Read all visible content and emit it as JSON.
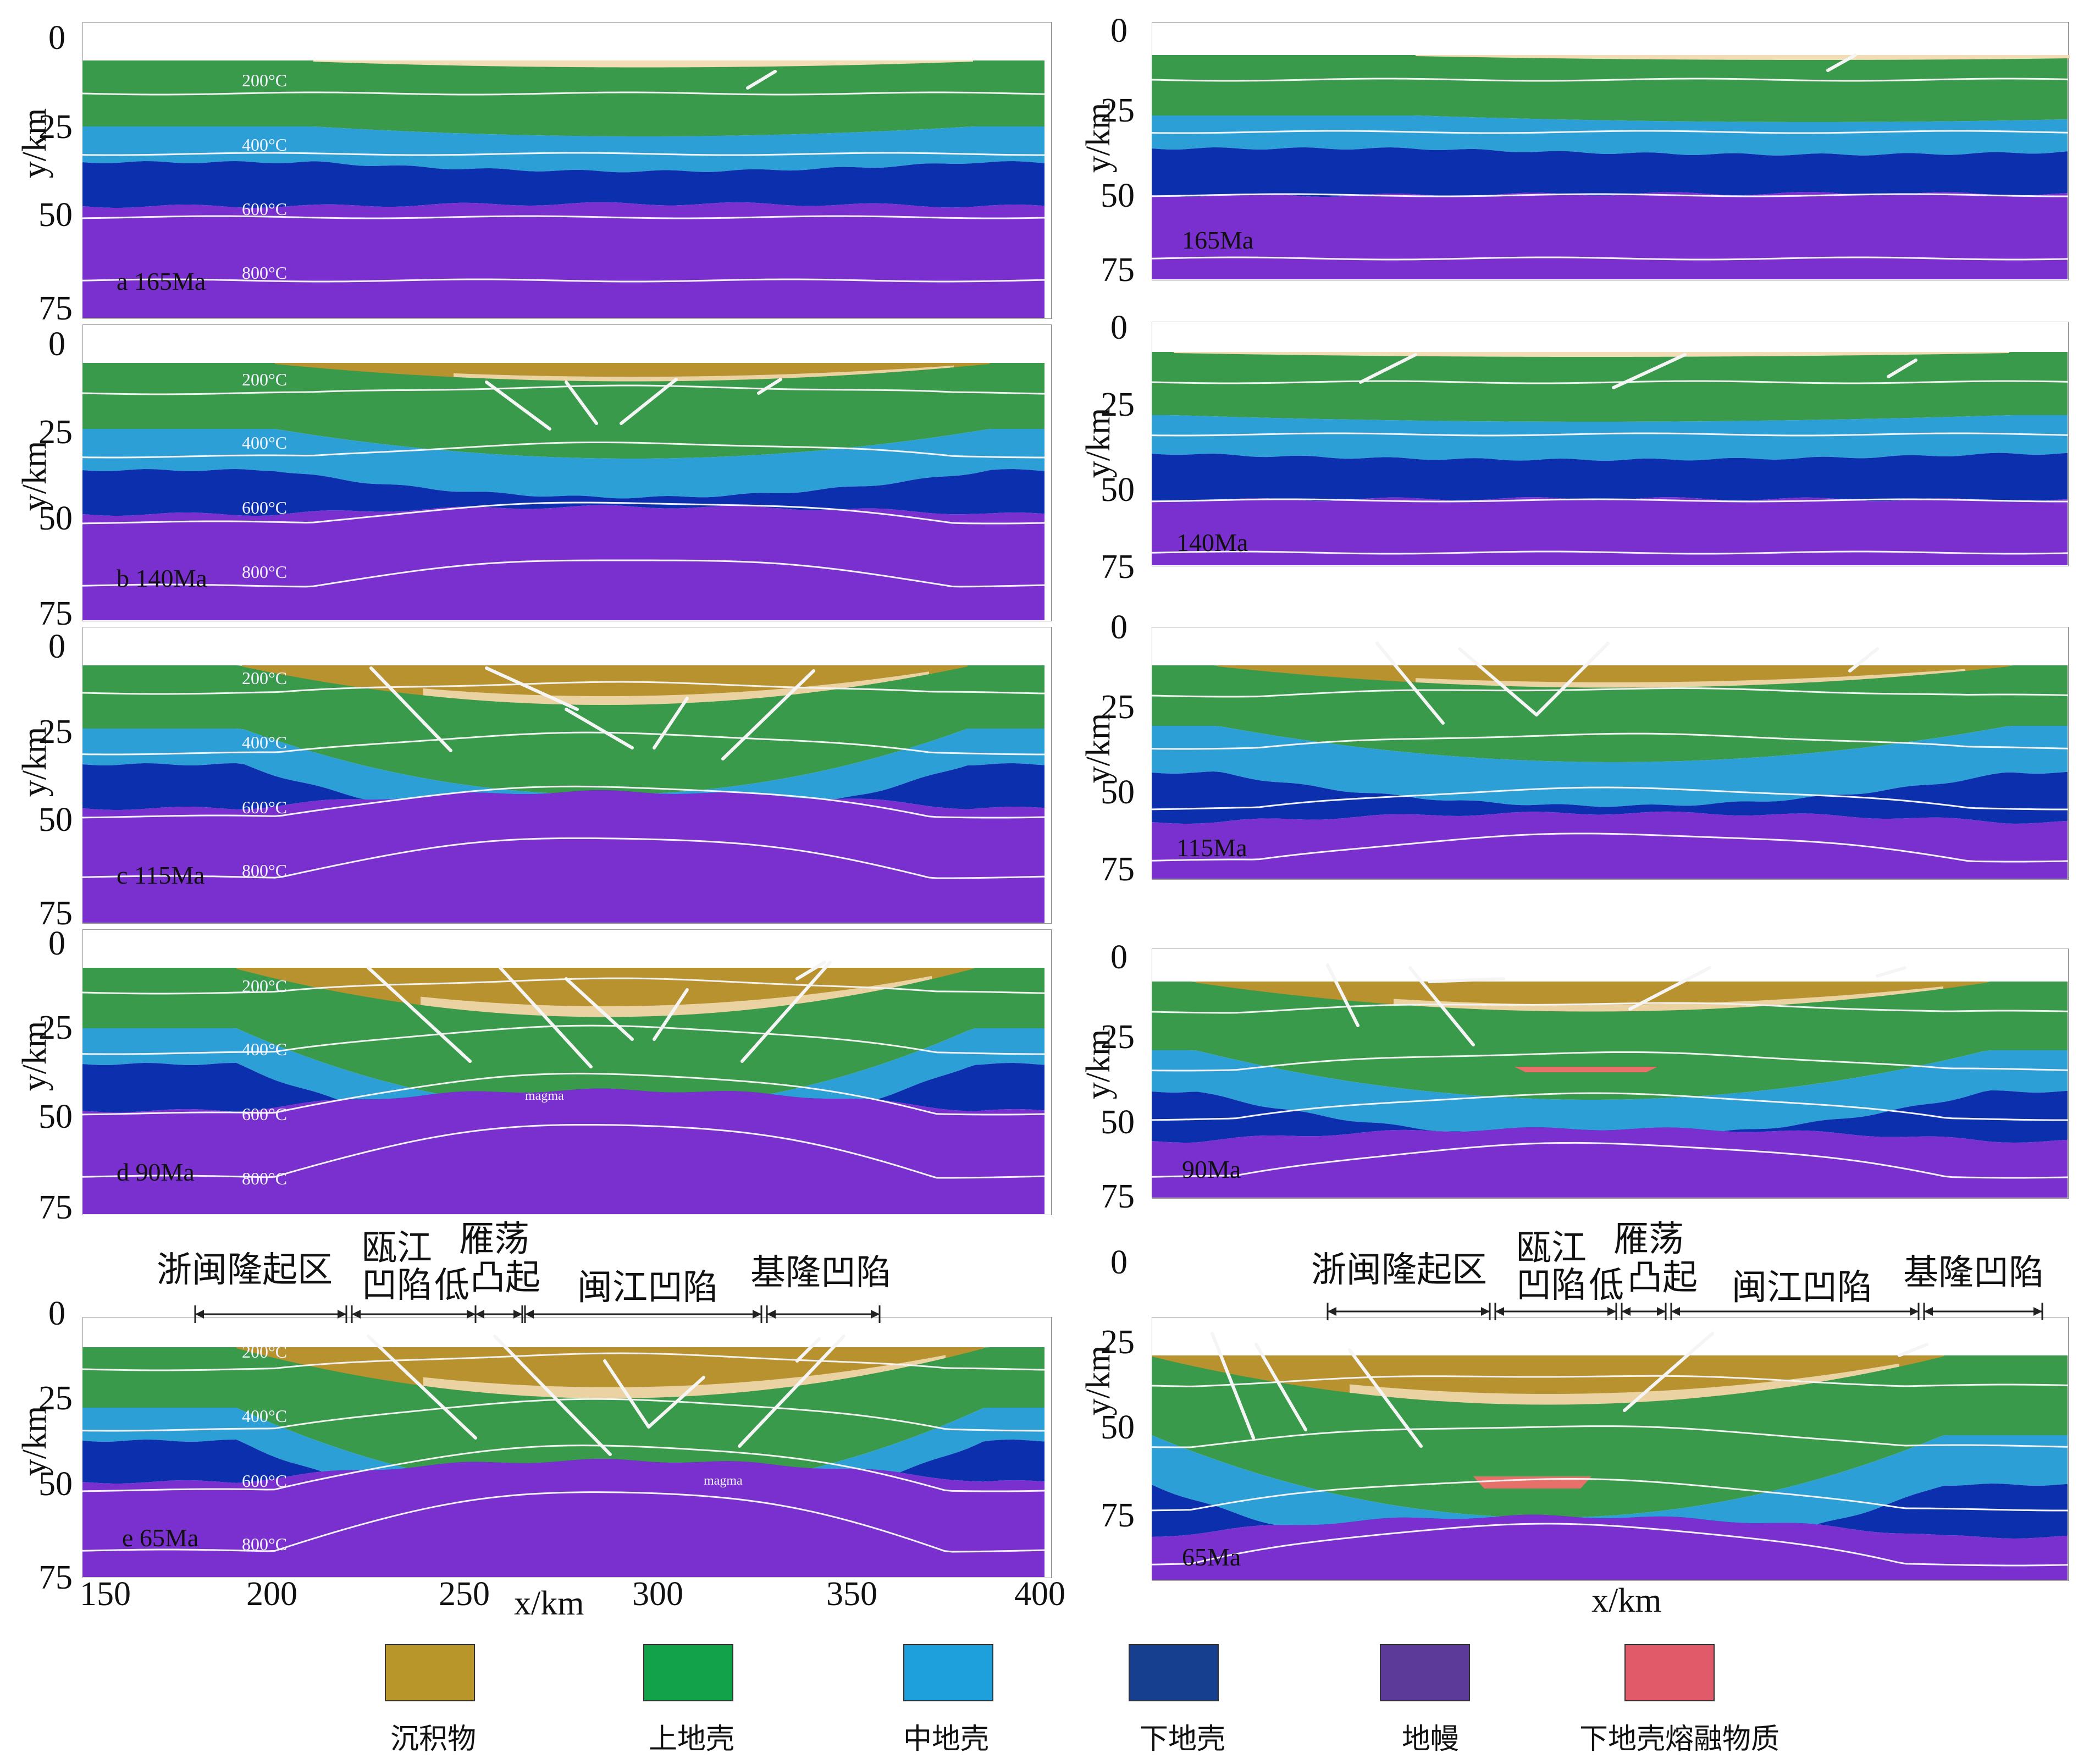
{
  "axes": {
    "y_label": "y/km",
    "x_label": "x/km",
    "y_ticks": [
      "0",
      "25",
      "50",
      "75"
    ],
    "y_ticks_right_bottom": [
      "0",
      "25",
      "50",
      "75"
    ],
    "x_ticks": [
      "150",
      "200",
      "250",
      "300",
      "350",
      "400"
    ]
  },
  "isotherms": [
    "200°C",
    "400°C",
    "600°C",
    "800°C"
  ],
  "magma_label": "magma",
  "left_panels": [
    {
      "tag": "a  165Ma"
    },
    {
      "tag": "b  140Ma"
    },
    {
      "tag": "c  115Ma"
    },
    {
      "tag": "d  90Ma"
    },
    {
      "tag": "e  65Ma"
    }
  ],
  "right_panels": [
    {
      "tag": "165Ma"
    },
    {
      "tag": "140Ma"
    },
    {
      "tag": "115Ma"
    },
    {
      "tag": "90Ma"
    },
    {
      "tag": "65Ma"
    }
  ],
  "regions": {
    "left": [
      "浙闽隆起区",
      "瓯江",
      "凹陷",
      "低",
      "雁荡",
      "凸起",
      "闽江凹陷",
      "基隆凹陷"
    ],
    "right": [
      "浙闽隆起区",
      "瓯江",
      "凹陷",
      "低",
      "雁荡",
      "凸起",
      "闽江凹陷",
      "基隆凹陷"
    ]
  },
  "legend": [
    {
      "label": "沉积物",
      "color": "#b8962a"
    },
    {
      "label": "上地壳",
      "color": "#12a24a"
    },
    {
      "label": "中地壳",
      "color": "#1ea0dc"
    },
    {
      "label": "下地壳",
      "color": "#163f8f"
    },
    {
      "label": "地幔",
      "color": "#5b3a9a"
    },
    {
      "label": "下地壳熔融物质",
      "color": "#e05a6a"
    }
  ],
  "colors": {
    "sediment": "#b8922e",
    "sediment_light": "#f3ddb6",
    "upper_crust": "#3a9a4c",
    "middle_crust": "#2c9fd6",
    "lower_crust": "#0c2fae",
    "mantle": "#7a2fcf",
    "melt": "#e8706a",
    "isotherm": "#f1f1f1",
    "fault": "#f5f5f5"
  }
}
